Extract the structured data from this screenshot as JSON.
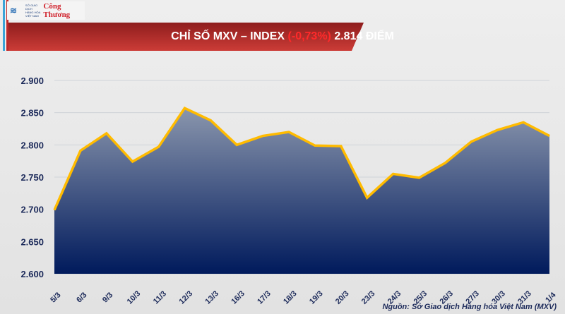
{
  "header": {
    "logo_text": "SỞ GIAO DỊCH HÀNG HÓA VIỆT NAM",
    "logo_brand": "Công Thương",
    "title_prefix": "CHỈ SỐ MXV – INDEX ",
    "title_change": "(-0,73%)",
    "title_suffix": " 2.814 ĐIỂM"
  },
  "colors": {
    "line": "#ffbb00",
    "fill_top": "#8a96ad",
    "fill_bottom": "#001a5c",
    "banner": "#b32f2d",
    "axis_text": "#1c2a5a"
  },
  "chart_data": {
    "type": "area",
    "title": "CHỈ SỐ MXV – INDEX (-0,73%) 2.814 ĐIỂM",
    "categories": [
      "5/3",
      "6/3",
      "9/3",
      "10/3",
      "11/3",
      "12/3",
      "13/3",
      "16/3",
      "17/3",
      "18/3",
      "19/3",
      "20/3",
      "23/3",
      "24/3",
      "25/3",
      "26/3",
      "27/3",
      "30/3",
      "31/3",
      "1/4"
    ],
    "values": [
      2699,
      2791,
      2818,
      2774,
      2797,
      2857,
      2838,
      2800,
      2814,
      2820,
      2799,
      2798,
      2718,
      2755,
      2749,
      2772,
      2805,
      2823,
      2835,
      2814
    ],
    "ylim": [
      2600,
      2900
    ],
    "yticks": [
      2600,
      2650,
      2700,
      2750,
      2800,
      2850,
      2900
    ],
    "ytick_labels": [
      "2.600",
      "2.650",
      "2.700",
      "2.750",
      "2.800",
      "2.850",
      "2.900"
    ],
    "grid": true,
    "legend": "none"
  },
  "footer": {
    "source": "Nguồn: Sở Giao dịch Hàng hóa Việt Nam (MXV)"
  }
}
